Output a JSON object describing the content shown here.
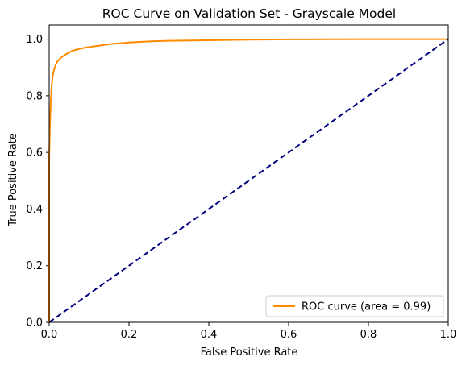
{
  "chart_data": {
    "type": "line",
    "title": "ROC Curve on Validation Set - Grayscale Model",
    "xlabel": "False Positive Rate",
    "ylabel": "True Positive Rate",
    "xlim": [
      0.0,
      1.0
    ],
    "ylim": [
      0.0,
      1.05
    ],
    "x_ticks": [
      "0.0",
      "0.2",
      "0.4",
      "0.6",
      "0.8",
      "1.0"
    ],
    "y_ticks": [
      "0.0",
      "0.2",
      "0.4",
      "0.6",
      "0.8",
      "1.0"
    ],
    "x_tick_values": [
      0.0,
      0.2,
      0.4,
      0.6,
      0.8,
      1.0
    ],
    "y_tick_values": [
      0.0,
      0.2,
      0.4,
      0.6,
      0.8,
      1.0
    ],
    "grid": false,
    "legend_position": "lower-right",
    "series": [
      {
        "name": "ROC curve (area = 0.99)",
        "color": "#ff8c00",
        "style": "solid",
        "x": [
          0.0,
          0.0,
          0.002,
          0.004,
          0.006,
          0.008,
          0.01,
          0.015,
          0.02,
          0.03,
          0.04,
          0.05,
          0.06,
          0.08,
          0.1,
          0.12,
          0.15,
          0.2,
          0.25,
          0.3,
          0.4,
          0.5,
          0.6,
          0.7,
          0.8,
          0.9,
          1.0
        ],
        "y": [
          0.0,
          0.58,
          0.7,
          0.78,
          0.83,
          0.86,
          0.88,
          0.905,
          0.92,
          0.935,
          0.945,
          0.953,
          0.96,
          0.967,
          0.972,
          0.976,
          0.982,
          0.988,
          0.992,
          0.994,
          0.996,
          0.998,
          0.999,
          0.9995,
          1.0,
          1.0,
          1.0
        ]
      },
      {
        "name": "",
        "color": "#000080",
        "style": "dashed",
        "x": [
          0.0,
          1.0
        ],
        "y": [
          0.0,
          1.0
        ]
      }
    ]
  }
}
